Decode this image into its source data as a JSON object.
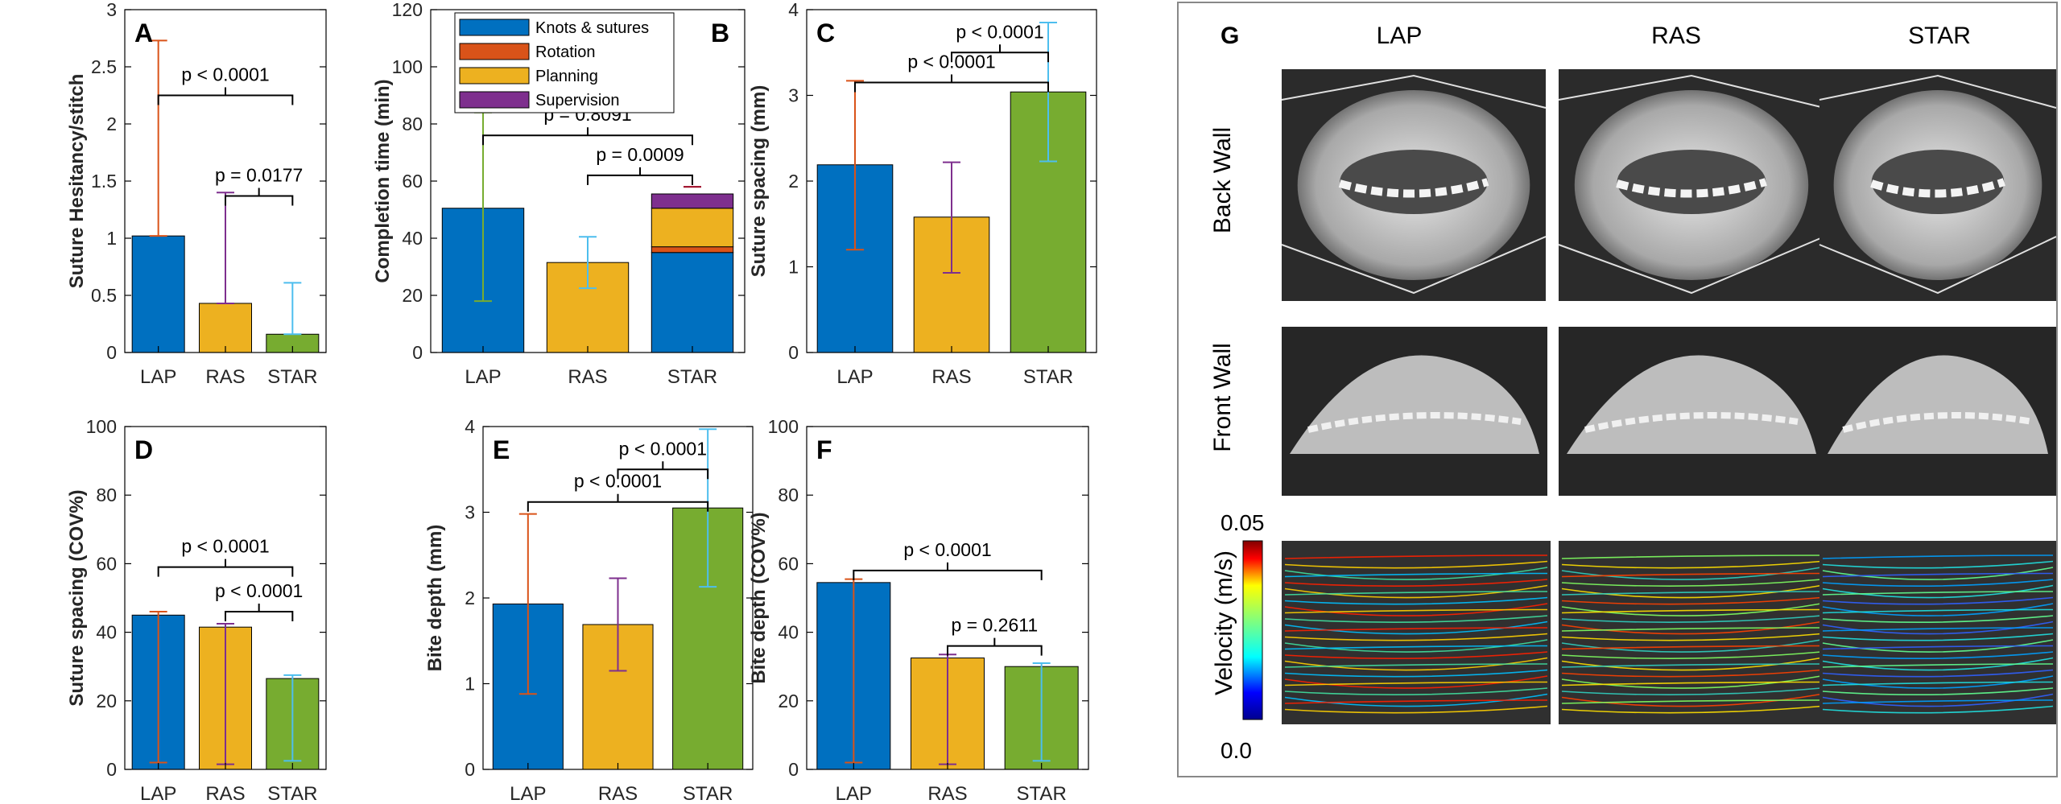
{
  "colors": {
    "LAP": "#0070C0",
    "RAS": "#EDB120",
    "STAR": "#77AC30",
    "err_LAP": "#D95319",
    "err_RAS": "#7E2F8E",
    "err_STAR": "#4DBEEE",
    "err_LAP_B": "#77AC30",
    "err_RAS_B": "#4DBEEE",
    "err_STAR_B": "#A2142F"
  },
  "chart_data": [
    {
      "panel": "A",
      "type": "bar",
      "categories": [
        "LAP",
        "RAS",
        "STAR"
      ],
      "values": [
        1.02,
        0.43,
        0.16
      ],
      "err_upper": [
        2.73,
        1.4,
        0.61
      ],
      "err_lower": [
        1.02,
        0.43,
        0.16
      ],
      "ylabel": "Suture Hesitancy/stitch",
      "ylim": [
        0,
        3
      ],
      "yticks": [
        0,
        0.5,
        1,
        1.5,
        2,
        2.5,
        3
      ],
      "brackets": [
        {
          "from": 0,
          "to": 2,
          "label": "p < 0.0001",
          "y": 2.25
        },
        {
          "from": 1,
          "to": 2,
          "label": "p = 0.0177",
          "y": 1.37
        }
      ]
    },
    {
      "panel": "B",
      "type": "bar",
      "stacked_on": 2,
      "categories": [
        "LAP",
        "RAS",
        "STAR"
      ],
      "values": [
        50.5,
        31.5,
        55.5
      ],
      "err_upper": [
        84,
        40.5,
        58
      ],
      "err_lower": [
        18,
        22.5,
        58
      ],
      "stack": [
        {
          "name": "Knots & sutures",
          "value": 35,
          "color": "#0070C0"
        },
        {
          "name": "Rotation",
          "value": 2,
          "color": "#D95319"
        },
        {
          "name": "Planning",
          "value": 13.5,
          "color": "#EDB120"
        },
        {
          "name": "Supervision",
          "value": 5,
          "color": "#7E2F8E"
        }
      ],
      "legend": [
        "Knots & sutures",
        "Rotation",
        "Planning",
        "Supervision"
      ],
      "ylabel": "Completion time (min)",
      "ylim": [
        0,
        120
      ],
      "yticks": [
        0,
        20,
        40,
        60,
        80,
        100,
        120
      ],
      "brackets": [
        {
          "from": 0,
          "to": 2,
          "label": "p = 0.8091",
          "y": 76
        },
        {
          "from": 1,
          "to": 2,
          "label": "p = 0.0009",
          "y": 62
        }
      ]
    },
    {
      "panel": "C",
      "type": "bar",
      "categories": [
        "LAP",
        "RAS",
        "STAR"
      ],
      "values": [
        2.19,
        1.58,
        3.04
      ],
      "err_upper": [
        3.17,
        2.22,
        3.85
      ],
      "err_lower": [
        1.2,
        0.93,
        2.23
      ],
      "ylabel": "Suture spacing (mm)",
      "ylim": [
        0,
        4
      ],
      "yticks": [
        0,
        1,
        2,
        3,
        4
      ],
      "brackets": [
        {
          "from": 1,
          "to": 2,
          "label": "p < 0.0001",
          "y": 3.5
        },
        {
          "from": 0,
          "to": 2,
          "label": "p < 0.0001",
          "y": 3.15
        }
      ]
    },
    {
      "panel": "D",
      "type": "bar",
      "categories": [
        "LAP",
        "RAS",
        "STAR"
      ],
      "values": [
        45,
        41.5,
        26.5
      ],
      "err_upper": [
        46,
        42.5,
        27.5
      ],
      "err_lower": [
        2,
        1.5,
        2.5
      ],
      "ylabel": "Suture spacing (COV%)",
      "ylim": [
        0,
        100
      ],
      "yticks": [
        0,
        20,
        40,
        60,
        80,
        100
      ],
      "brackets": [
        {
          "from": 0,
          "to": 2,
          "label": "p < 0.0001",
          "y": 59
        },
        {
          "from": 1,
          "to": 2,
          "label": "p < 0.0001",
          "y": 46
        }
      ]
    },
    {
      "panel": "E",
      "type": "bar",
      "categories": [
        "LAP",
        "RAS",
        "STAR"
      ],
      "values": [
        1.93,
        1.69,
        3.05
      ],
      "err_upper": [
        2.98,
        2.23,
        3.97
      ],
      "err_lower": [
        0.88,
        1.15,
        2.13
      ],
      "ylabel": "Bite depth (mm)",
      "ylim": [
        0,
        4
      ],
      "yticks": [
        0,
        1,
        2,
        3,
        4
      ],
      "brackets": [
        {
          "from": 1,
          "to": 2,
          "label": "p < 0.0001",
          "y": 3.5
        },
        {
          "from": 0,
          "to": 2,
          "label": "p < 0.0001",
          "y": 3.12
        }
      ]
    },
    {
      "panel": "F",
      "type": "bar",
      "categories": [
        "LAP",
        "RAS",
        "STAR"
      ],
      "values": [
        54.5,
        32.5,
        30
      ],
      "err_upper": [
        55.5,
        33.5,
        31
      ],
      "err_lower": [
        2,
        1.5,
        2.5
      ],
      "ylabel": "Bite depth (COV%)",
      "ylim": [
        0,
        100
      ],
      "yticks": [
        0,
        20,
        40,
        60,
        80,
        100
      ],
      "brackets": [
        {
          "from": 0,
          "to": 2,
          "label": "p < 0.0001",
          "y": 58
        },
        {
          "from": 1,
          "to": 2,
          "label": "p = 0.2611",
          "y": 36
        }
      ]
    }
  ],
  "panel_g": {
    "letter": "G",
    "columns": [
      "LAP",
      "RAS",
      "STAR"
    ],
    "rows": [
      "Back Wall",
      "Front Wall"
    ],
    "colorbar_label": "Velocity (m/s)",
    "colorbar_max": "0.05",
    "colorbar_min": "0.0"
  }
}
